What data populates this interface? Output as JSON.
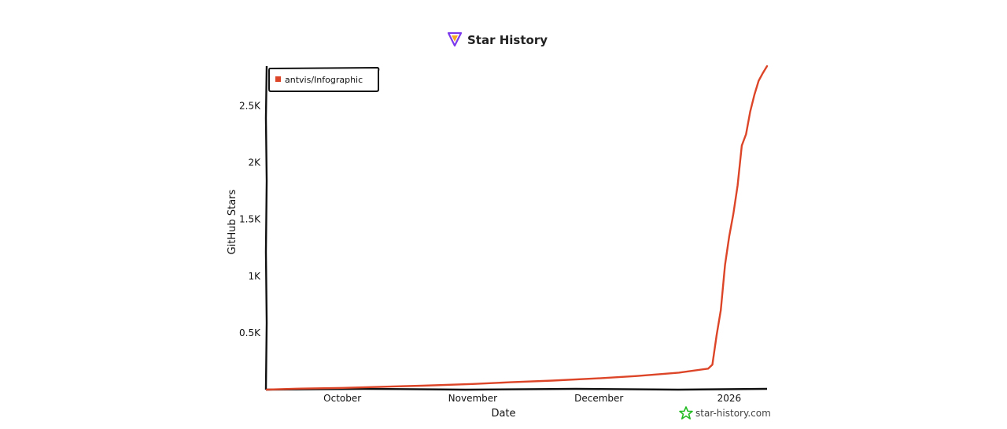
{
  "chart_data": {
    "type": "line",
    "title": "Star History",
    "xlabel": "Date",
    "ylabel": "GitHub Stars",
    "x_ticks": [
      "October",
      "November",
      "December",
      "2026"
    ],
    "y_ticks": [
      "0.5K",
      "1K",
      "1.5K",
      "2K",
      "2.5K"
    ],
    "ylim": [
      0,
      2850
    ],
    "xlim": [
      "2025-09-13",
      "2026-01-10"
    ],
    "legend": {
      "position": "top-left",
      "entries": [
        "antvis/Infographic"
      ]
    },
    "grid": false,
    "series": [
      {
        "name": "antvis/Infographic",
        "color": "#dd4528",
        "x": [
          "2025-09-13",
          "2025-09-20",
          "2025-10-01",
          "2025-10-10",
          "2025-10-20",
          "2025-11-01",
          "2025-11-10",
          "2025-11-20",
          "2025-12-01",
          "2025-12-10",
          "2025-12-20",
          "2025-12-27",
          "2025-12-28",
          "2025-12-29",
          "2025-12-30",
          "2025-12-31",
          "2026-01-01",
          "2026-01-02",
          "2026-01-03",
          "2026-01-04",
          "2026-01-05",
          "2026-01-06",
          "2026-01-07",
          "2026-01-08",
          "2026-01-09",
          "2026-01-10"
        ],
        "y": [
          0,
          8,
          15,
          25,
          35,
          50,
          65,
          80,
          100,
          120,
          150,
          185,
          220,
          480,
          700,
          1100,
          1350,
          1550,
          1800,
          2150,
          2250,
          2450,
          2600,
          2720,
          2790,
          2850
        ]
      }
    ]
  },
  "watermark": {
    "text": "star-history.com",
    "color": "#22bb22"
  },
  "title_icon": {
    "name": "star-history-logo-icon",
    "color": "#7c3aed"
  }
}
